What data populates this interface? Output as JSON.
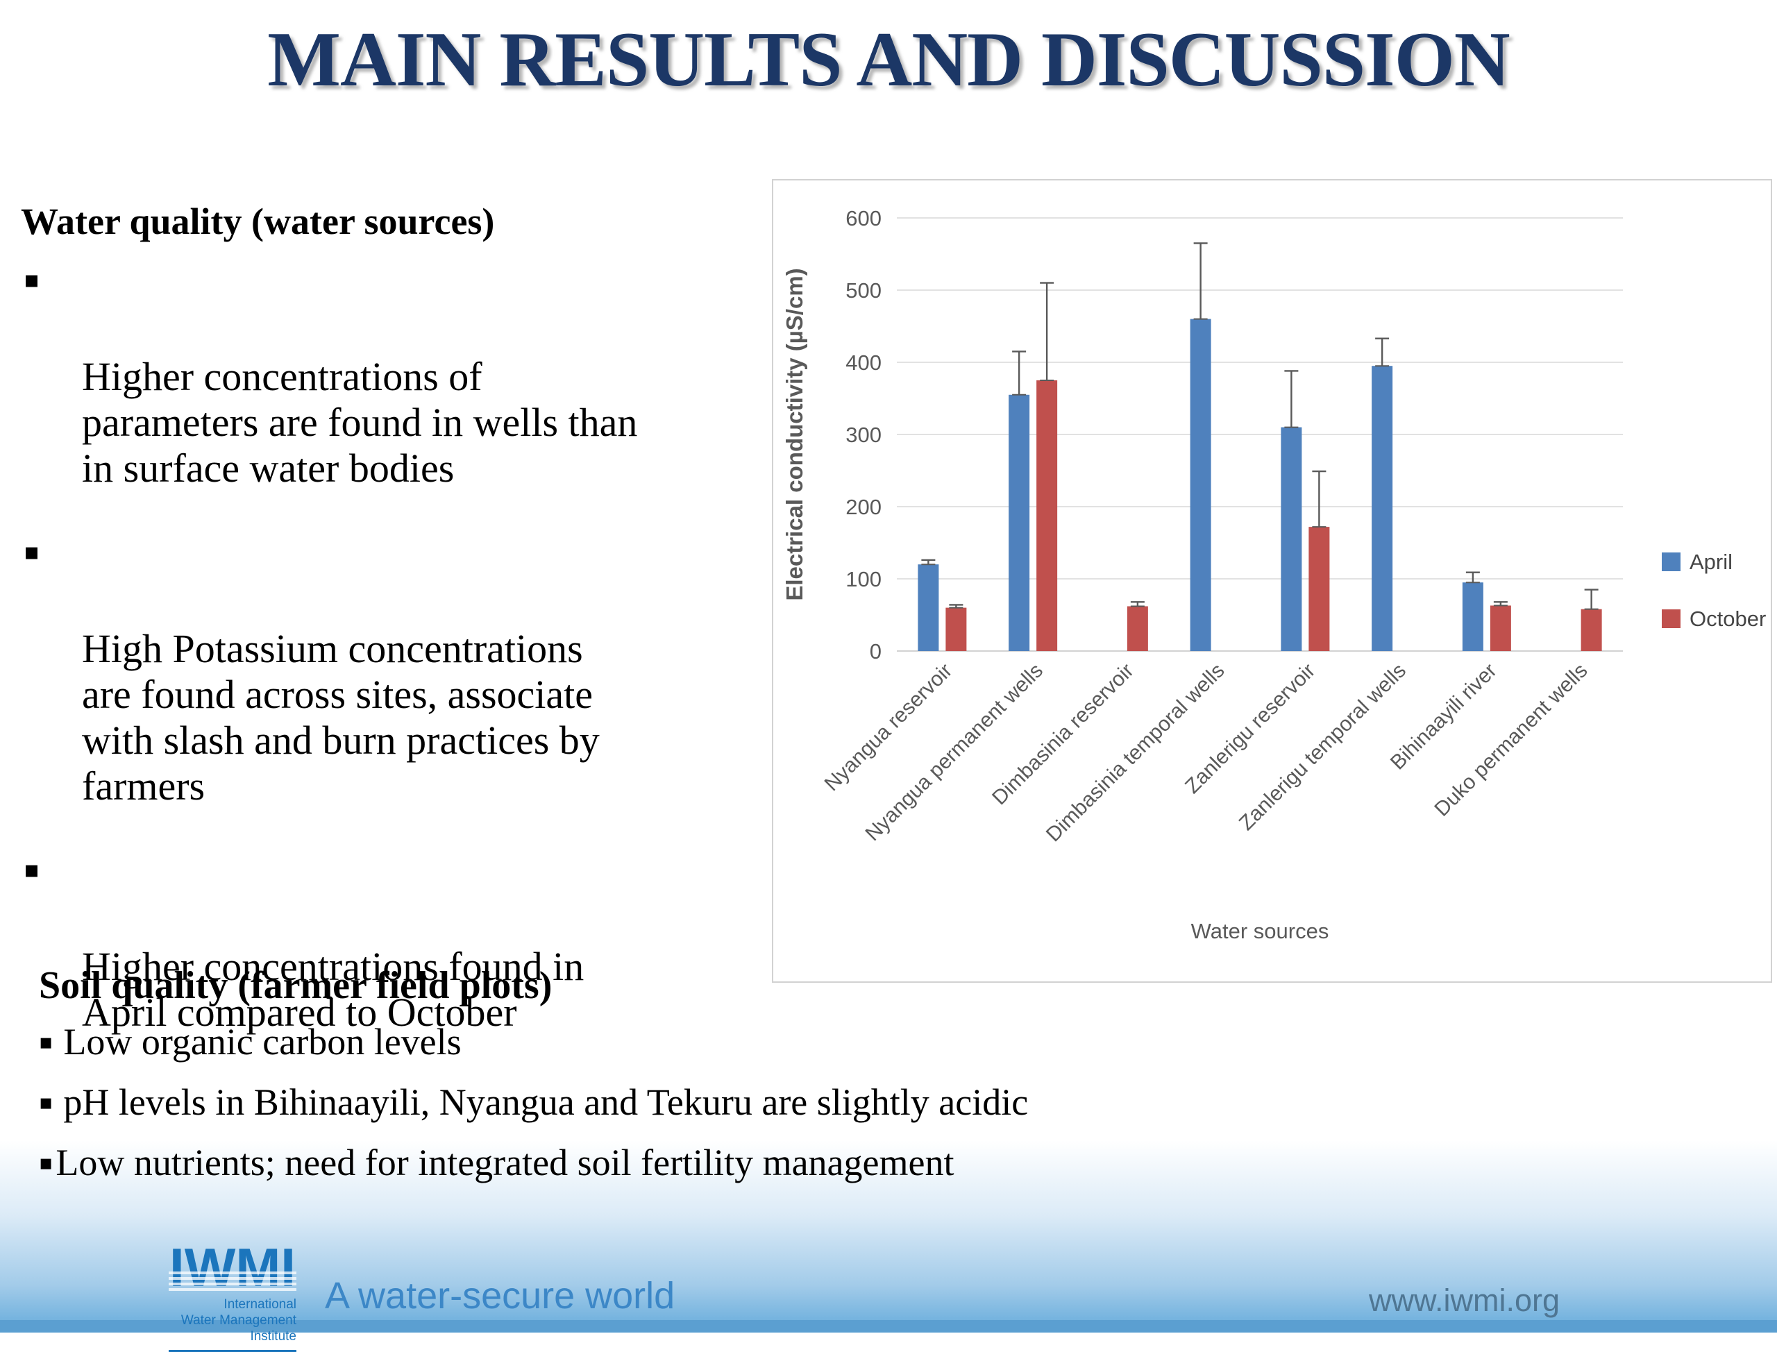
{
  "slide": {
    "title": "MAIN RESULTS AND DISCUSSION",
    "bullet_glyph": "▪",
    "water_quality": {
      "heading": "Water quality (water sources)",
      "bullets": [
        "Higher concentrations of\nparameters are found in wells than\nin surface water bodies",
        "High Potassium concentrations\nare found across sites, associate\nwith slash and burn practices by\nfarmers",
        "Higher concentrations found in\nApril compared to October"
      ]
    },
    "soil_quality": {
      "heading": "Soil quality (farmer field plots)",
      "bullets": [
        "Low organic carbon levels",
        "pH levels in Bihinaayili, Nyangua and Tekuru are slightly acidic",
        "Low nutrients; need for integrated soil fertility management"
      ]
    },
    "footer": {
      "logo_acronym": "IWMI",
      "logo_lines": [
        "International",
        "Water Management",
        "Institute"
      ],
      "tagline": "A water-secure world",
      "website": "www.iwmi.org"
    }
  },
  "chart_data": {
    "type": "bar",
    "title": "",
    "xlabel": "Water sources",
    "ylabel": "Electrical conductivity (µS/cm)",
    "ylim": [
      0,
      600
    ],
    "ytick_step": 100,
    "grid": true,
    "legend_position": "right",
    "categories": [
      "Nyangua reservoir",
      "Nyangua permanent wells",
      "Dimbasinia reservoir",
      "Dimbasinia temporal wells",
      "Zanlerigu reservoir",
      "Zanlerigu temporal wells",
      "Bihinaayili river",
      "Duko permanent wells"
    ],
    "series": [
      {
        "name": "April",
        "color": "#4F81BD",
        "values": [
          120,
          355,
          null,
          460,
          310,
          395,
          95,
          null
        ],
        "error_up": [
          6,
          60,
          null,
          105,
          78,
          38,
          14,
          null
        ]
      },
      {
        "name": "October",
        "color": "#C0504D",
        "values": [
          60,
          375,
          62,
          null,
          172,
          null,
          63,
          58
        ],
        "error_up": [
          4,
          135,
          6,
          null,
          77,
          null,
          5,
          27
        ]
      }
    ],
    "axis_text_color": "#595959",
    "gridline_color": "#d9d9d9"
  }
}
